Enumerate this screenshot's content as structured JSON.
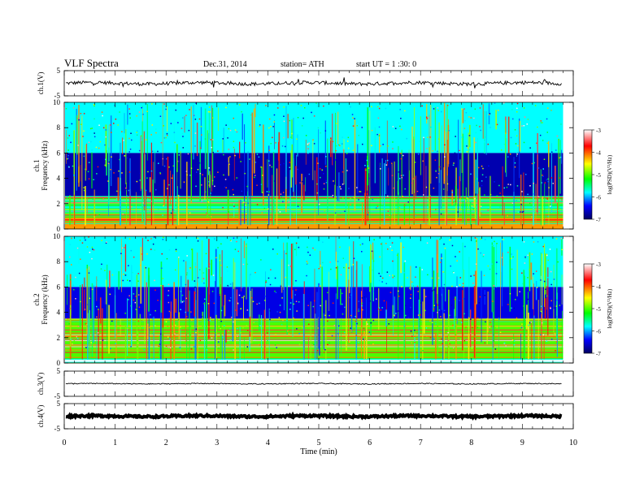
{
  "header": {
    "title": "VLF  Spectra",
    "date": "Dec.31, 2014",
    "station": "station= ATH",
    "start": "start  UT  =   1  :30: 0"
  },
  "panels": {
    "ch1_wave": {
      "ylabel": "ch.1(V)",
      "ticks": [
        "5",
        "-5"
      ]
    },
    "ch1_spec": {
      "ylabel_top": "ch.1",
      "ylabel_bottom": "Frequency  (kHz)",
      "ticks": [
        "0",
        "2",
        "4",
        "6",
        "8",
        "10"
      ]
    },
    "ch2_spec": {
      "ylabel_top": "ch.2",
      "ylabel_bottom": "Frequency  (kHz)",
      "ticks": [
        "0",
        "2",
        "4",
        "6",
        "8",
        "10"
      ]
    },
    "ch3_wave": {
      "ylabel": "ch.3(V)",
      "ticks": [
        "5",
        "-5"
      ]
    },
    "ch4_wave": {
      "ylabel": "ch.4(V)",
      "ticks": [
        "5",
        "-5"
      ]
    }
  },
  "colorbar": {
    "label": "log(PSD)(V²/Hz)",
    "ticks": [
      "-3",
      "-4",
      "-5",
      "-6",
      "-7"
    ],
    "colors": [
      "#ffffff",
      "#ff0000",
      "#ffff00",
      "#00ff00",
      "#00ffff",
      "#0000ff",
      "#000080"
    ]
  },
  "xaxis": {
    "label": "Time  (min)",
    "ticks": [
      "0",
      "1",
      "2",
      "3",
      "4",
      "5",
      "6",
      "7",
      "8",
      "9",
      "10"
    ]
  },
  "chart_data": {
    "type": "heatmap",
    "title": "VLF  Spectra",
    "xlabel": "Time  (min)",
    "xlim": [
      0,
      10
    ],
    "data_end_min": 9.8,
    "frequency_range_khz": [
      0,
      10
    ],
    "psd_range_log": [
      -7,
      -3
    ],
    "series": [
      {
        "name": "ch.1(V)",
        "kind": "waveform",
        "ylim": [
          -5,
          5
        ],
        "baseline_v": 0.0,
        "noise_amp_v": 0.7
      },
      {
        "name": "ch.1",
        "kind": "spectrogram",
        "bands": [
          {
            "f_khz": [
              6,
              10
            ],
            "log_psd": -5.8
          },
          {
            "f_khz": [
              2.6,
              6
            ],
            "log_psd": -6.7
          },
          {
            "f_khz": [
              1,
              2.6
            ],
            "log_psd": -5.5
          },
          {
            "f_khz": [
              0,
              1
            ],
            "log_psd": -4.2
          }
        ]
      },
      {
        "name": "ch.2",
        "kind": "spectrogram",
        "bands": [
          {
            "f_khz": [
              6,
              10
            ],
            "log_psd": -5.8
          },
          {
            "f_khz": [
              3.5,
              6
            ],
            "log_psd": -6.5
          },
          {
            "f_khz": [
              0.3,
              3.5
            ],
            "log_psd": -5.0
          }
        ]
      },
      {
        "name": "ch.3(V)",
        "kind": "waveform",
        "ylim": [
          -5,
          5
        ],
        "baseline_v": 0.0,
        "noise_amp_v": 0.2
      },
      {
        "name": "ch.4(V)",
        "kind": "waveform",
        "ylim": [
          -5,
          5
        ],
        "baseline_v": 0.0,
        "noise_amp_v": 0.4
      }
    ]
  }
}
